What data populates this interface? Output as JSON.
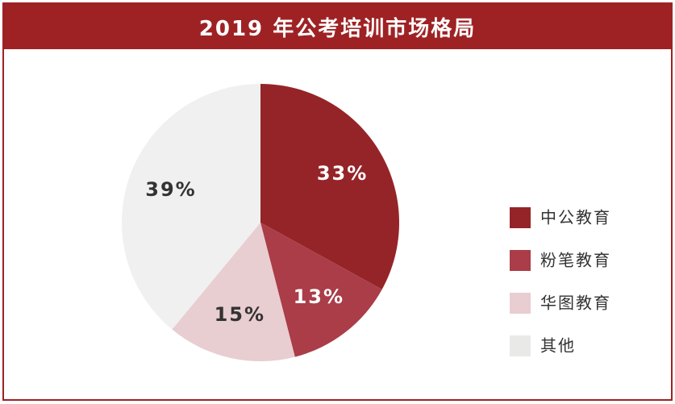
{
  "colors": {
    "brand": "#9e2224",
    "slice_colors": [
      "#952428",
      "#aa3d48",
      "#e8cdd1",
      "#f0f0f0"
    ],
    "label_colors": [
      "#ffffff",
      "#ffffff",
      "#333333",
      "#333333"
    ]
  },
  "chart_data": {
    "type": "pie",
    "title": "2019 年公考培训市场格局",
    "categories": [
      "中公教育",
      "粉笔教育",
      "华图教育",
      "其他"
    ],
    "values": [
      33,
      13,
      15,
      39
    ],
    "labels": [
      "33%",
      "13%",
      "15%",
      "39%"
    ],
    "legend_placement": "right"
  }
}
